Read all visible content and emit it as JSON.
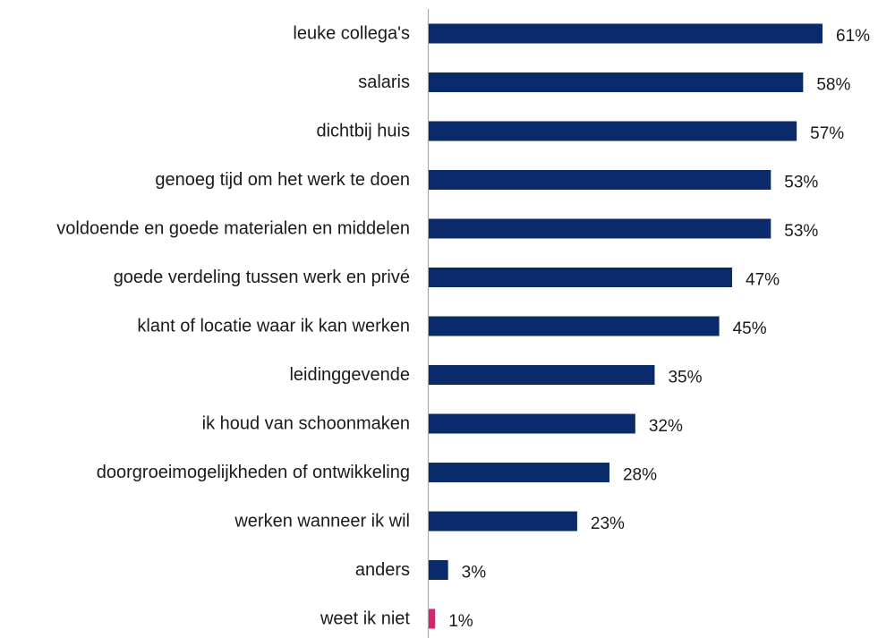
{
  "chart_data": {
    "type": "bar",
    "orientation": "horizontal",
    "categories": [
      "leuke collega's",
      "salaris",
      "dichtbij huis",
      "genoeg tijd om het werk te doen",
      "voldoende en goede materialen en middelen",
      "goede verdeling tussen werk en privé",
      "klant of locatie waar ik kan werken",
      "leidinggevende",
      "ik houd van schoonmaken",
      "doorgroeimogelijkheden of ontwikkeling",
      "werken wanneer ik wil",
      "anders",
      "weet ik niet"
    ],
    "values": [
      61,
      58,
      57,
      53,
      53,
      47,
      45,
      35,
      32,
      28,
      23,
      3,
      1
    ],
    "value_labels": [
      "61%",
      "58%",
      "57%",
      "53%",
      "53%",
      "47%",
      "45%",
      "35%",
      "32%",
      "28%",
      "23%",
      "3%",
      "1%"
    ],
    "bar_colors": [
      "#0a2a6b",
      "#0a2a6b",
      "#0a2a6b",
      "#0a2a6b",
      "#0a2a6b",
      "#0a2a6b",
      "#0a2a6b",
      "#0a2a6b",
      "#0a2a6b",
      "#0a2a6b",
      "#0a2a6b",
      "#0a2a6b",
      "#d6246e"
    ],
    "title": "",
    "xlabel": "",
    "ylabel": "",
    "grid": false,
    "axis_color": "#aaaaaa"
  }
}
